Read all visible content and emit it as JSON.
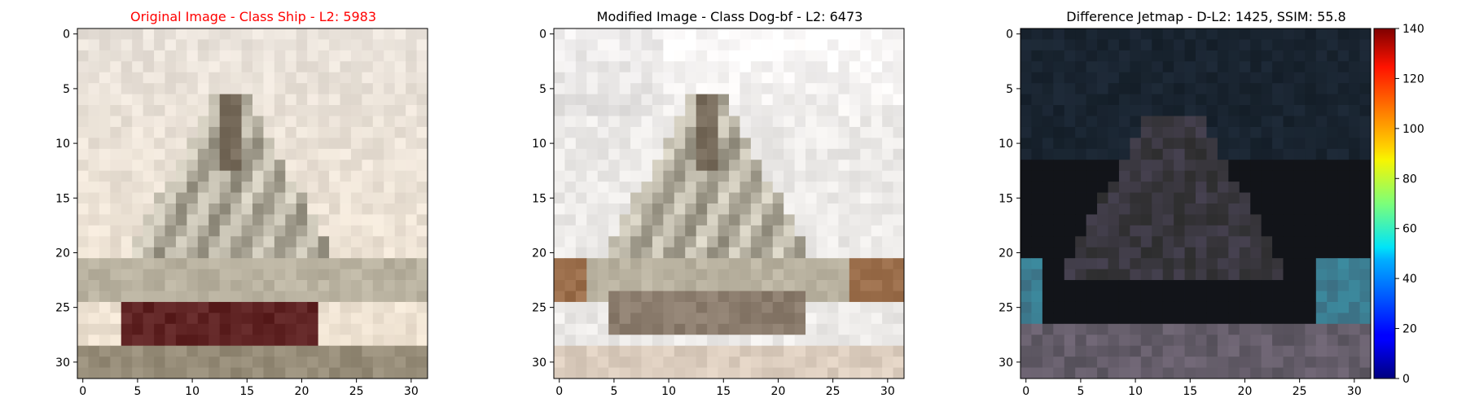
{
  "panels": [
    {
      "title": "Original Image - Class Ship - L2: 5983",
      "title_color": "#ff0000",
      "image": "ship-photo-original",
      "x_ticks": [
        0,
        5,
        10,
        15,
        20,
        25,
        30
      ],
      "y_ticks": [
        0,
        5,
        10,
        15,
        20,
        25,
        30
      ]
    },
    {
      "title": "Modified Image - Class Dog-bf - L2: 6473",
      "title_color": "#000000",
      "image": "ship-photo-modified",
      "x_ticks": [
        0,
        5,
        10,
        15,
        20,
        25,
        30
      ],
      "y_ticks": [
        0,
        5,
        10,
        15,
        20,
        25,
        30
      ]
    },
    {
      "title": "Difference Jetmap - D-L2: 1425, SSIM: 55.8",
      "title_color": "#000000",
      "image": "difference-jetmap",
      "x_ticks": [
        0,
        5,
        10,
        15,
        20,
        25,
        30
      ],
      "y_ticks": [
        0,
        5,
        10,
        15,
        20,
        25,
        30
      ]
    }
  ],
  "colorbar": {
    "colormap": "jet",
    "ticks": [
      0,
      20,
      40,
      60,
      80,
      100,
      120,
      140
    ],
    "range": [
      0,
      140
    ]
  },
  "chart_data": {
    "type": "heatmap",
    "grid_size": [
      32,
      32
    ],
    "xlim": [
      -0.5,
      31.5
    ],
    "ylim": [
      31.5,
      -0.5
    ],
    "panels": [
      "Original Image - Class Ship - L2: 5983",
      "Modified Image - Class Dog-bf - L2: 6473",
      "Difference Jetmap - D-L2: 1425, SSIM: 55.8"
    ],
    "colorbar_range": [
      0,
      140
    ]
  }
}
